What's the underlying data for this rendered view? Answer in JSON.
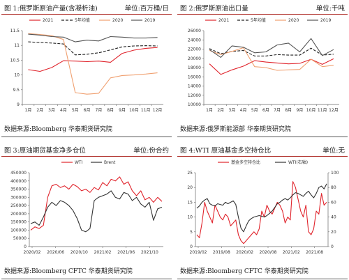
{
  "panels": [
    {
      "title": "图 1:俄罗斯原油产量(含凝析油)",
      "unit": "单位:百万桶/日",
      "source": "数据来源:Bloomberg 华泰期货研究院",
      "chart": {
        "type": "line",
        "categories": [
          "1月",
          "2月",
          "3月",
          "4月",
          "5月",
          "6月",
          "7月",
          "8月",
          "9月",
          "10月",
          "11月",
          "12月"
        ],
        "ylim": [
          9,
          11.5
        ],
        "yticks": [
          9,
          9.5,
          10,
          10.5,
          11,
          11.5
        ],
        "series": [
          {
            "name": "2021",
            "color": "#e0242c",
            "dash": "",
            "values": [
              10.18,
              10.12,
              10.25,
              10.48,
              10.47,
              10.45,
              10.47,
              10.43,
              10.73,
              10.84,
              10.9,
              10.93
            ]
          },
          {
            "name": "5年均值",
            "color": "#222222",
            "dash": "4,2",
            "values": [
              11.12,
              11.1,
              11.08,
              11.05,
              10.68,
              10.7,
              10.75,
              10.85,
              10.95,
              10.98,
              10.99,
              10.98
            ]
          },
          {
            "name": "2020",
            "color": "#f0a070",
            "dash": "",
            "values": [
              11.4,
              11.37,
              11.33,
              11.2,
              9.4,
              9.35,
              9.38,
              9.9,
              9.98,
              10.0,
              10.03,
              10.07
            ]
          },
          {
            "name": "2019",
            "color": "#555555",
            "dash": "",
            "values": [
              11.38,
              11.35,
              11.3,
              11.28,
              11.12,
              11.18,
              11.15,
              11.3,
              11.28,
              11.25,
              11.25,
              11.27
            ]
          }
        ]
      }
    },
    {
      "title": "图 2:俄罗斯原油出口量",
      "unit": "单位:千吨",
      "source": "数据来源:俄罗斯能源部 华泰期货研究院",
      "chart": {
        "type": "line",
        "categories": [
          "1月",
          "2月",
          "3月",
          "4月",
          "5月",
          "6月",
          "7月",
          "8月",
          "9月",
          "10月",
          "11月",
          "12月"
        ],
        "ylim": [
          10000,
          26000
        ],
        "yticks": [
          10000,
          12000,
          14000,
          16000,
          18000,
          20000,
          22000,
          24000,
          26000
        ],
        "series": [
          {
            "name": "2021",
            "color": "#e0242c",
            "dash": "",
            "values": [
              18800,
              16500,
              17500,
              18300,
              19500,
              19200,
              19000,
              18800,
              18900,
              19800,
              18700,
              19900
            ]
          },
          {
            "name": "5年均值",
            "color": "#222222",
            "dash": "4,2",
            "values": [
              22100,
              21000,
              21500,
              21700,
              20500,
              20500,
              20800,
              20700,
              20700,
              22200,
              20700,
              20900
            ]
          },
          {
            "name": "2020",
            "color": "#f0a070",
            "dash": "",
            "values": [
              21700,
              20800,
              21500,
              22300,
              18200,
              18000,
              17400,
              17500,
              17600,
              19800,
              18200,
              18500
            ]
          },
          {
            "name": "2019",
            "color": "#555555",
            "dash": "",
            "values": [
              21900,
              20200,
              22700,
              22400,
              21200,
              21400,
              22900,
              23300,
              21400,
              24300,
              20600,
              21900
            ]
          }
        ]
      }
    },
    {
      "title": "图 3:原油期货基金净多仓位",
      "unit": "单位:份合约",
      "source": "数据来源:Bloomberg CFTC 华泰期货研究院",
      "chart": {
        "type": "line",
        "ylim": [
          0,
          450000
        ],
        "yticks": [
          0,
          50000,
          100000,
          150000,
          200000,
          250000,
          300000,
          350000,
          400000,
          450000
        ],
        "xticklabels": [
          "2020/02",
          "2020/06",
          "2020/10",
          "2021/02",
          "2021/06",
          "2021/10"
        ],
        "series": [
          {
            "name": "WTI",
            "color": "#e0242c",
            "values": [
              100000,
              120000,
              110000,
              130000,
              300000,
              370000,
              380000,
              360000,
              370000,
              350000,
              380000,
              365000,
              340000,
              350000,
              330000,
              360000,
              345000,
              390000,
              370000,
              410000,
              400000,
              425000,
              380000,
              395000,
              340000,
              310000,
              340000,
              285000,
              300000,
              270000,
              300000,
              275000
            ]
          },
          {
            "name": "Brent",
            "color": "#333333",
            "values": [
              140000,
              150000,
              130000,
              180000,
              240000,
              270000,
              250000,
              280000,
              270000,
              250000,
              220000,
              170000,
              100000,
              90000,
              110000,
              280000,
              300000,
              310000,
              320000,
              340000,
              300000,
              290000,
              330000,
              320000,
              280000,
              300000,
              260000,
              240000,
              270000,
              160000,
              230000,
              240000
            ]
          }
        ]
      }
    },
    {
      "title": "图 4:WTI 原油基金多空持仓比",
      "unit": "单位:无",
      "source": "数据来源:Bloomberg CFTC 华泰期货研究院",
      "chart": {
        "type": "line",
        "ylim": [
          0,
          25
        ],
        "yticks": [
          0,
          5,
          10,
          15,
          20,
          25
        ],
        "y2lim": [
          0,
          100
        ],
        "y2ticks": [
          0,
          20,
          40,
          60,
          80,
          100
        ],
        "xticklabels": [
          "2019/02",
          "2019/08",
          "2020/02",
          "2020/08",
          "2021/02",
          "2021/08"
        ],
        "series": [
          {
            "name": "基金多空持仓比",
            "color": "#e0242c",
            "axis": "left",
            "values": [
              4,
              3,
              8,
              15,
              12,
              10,
              8,
              14,
              12,
              10,
              9,
              11,
              10,
              7,
              8,
              9,
              4,
              2,
              1,
              2,
              3,
              4,
              5,
              4,
              6,
              12,
              10,
              14,
              12,
              11,
              13,
              15,
              14,
              12,
              8,
              10,
              9,
              22,
              20,
              16,
              12,
              10,
              14,
              5,
              4,
              6,
              12,
              11,
              18,
              14,
              15
            ]
          },
          {
            "name": "WTI(右轴)",
            "color": "#333333",
            "axis": "right",
            "values": [
              52,
              55,
              60,
              63,
              65,
              58,
              56,
              55,
              58,
              57,
              56,
              60,
              58,
              60,
              62,
              57,
              40,
              25,
              20,
              28,
              35,
              38,
              40,
              41,
              42,
              41,
              40,
              42,
              45,
              48,
              53,
              58,
              60,
              63,
              65,
              63,
              66,
              70,
              73,
              72,
              70,
              68,
              72,
              75,
              70,
              66,
              72,
              80,
              82,
              78,
              85
            ]
          }
        ]
      }
    }
  ]
}
